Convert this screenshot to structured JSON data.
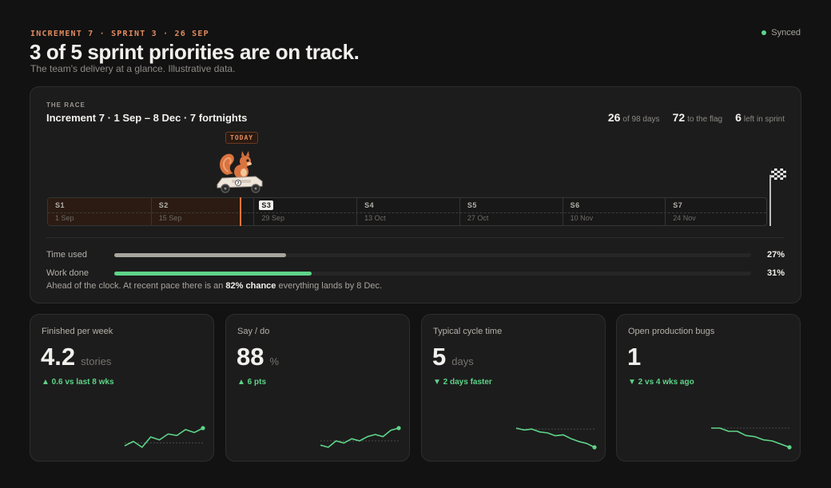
{
  "header": {
    "eyebrow": "INCREMENT 7 · SPRINT 3 · 26 SEP",
    "title": "3 of 5 sprint priorities are on track.",
    "subtitle": "The team's delivery at a glance. Illustrative data.",
    "sync_label": "Synced",
    "sync_color": "#5ed488"
  },
  "race": {
    "label": "THE RACE",
    "title": "Increment 7 · 1 Sep – 8 Dec · 7 fortnights",
    "stats": [
      {
        "num": "26",
        "label": "of 98 days"
      },
      {
        "num": "72",
        "label": "to the flag"
      },
      {
        "num": "6",
        "label": "left in sprint"
      }
    ],
    "today_label": "TODAY",
    "kart_number": "7",
    "days_elapsed_fraction": 0.27,
    "sprints": [
      {
        "name": "S1",
        "date": "1 Sep",
        "current": false
      },
      {
        "name": "S2",
        "date": "15 Sep",
        "current": false
      },
      {
        "name": "S3",
        "date": "29 Sep",
        "current": true
      },
      {
        "name": "S4",
        "date": "13 Oct",
        "current": false
      },
      {
        "name": "S5",
        "date": "27 Oct",
        "current": false
      },
      {
        "name": "S6",
        "date": "10 Nov",
        "current": false
      },
      {
        "name": "S7",
        "date": "24 Nov",
        "current": false
      }
    ],
    "bars": [
      {
        "label": "Time used",
        "pct_label": "27%",
        "fraction": 0.27,
        "color": "#a8a49e"
      },
      {
        "label": "Work done",
        "pct_label": "31%",
        "fraction": 0.31,
        "color": "#5ed488"
      }
    ],
    "note_prefix": "Ahead of the clock. At recent pace there is an ",
    "note_bold": "82% chance",
    "note_suffix": " everything lands by 8 Dec."
  },
  "cards": [
    {
      "title": "Finished per week",
      "value": "4.2",
      "unit": "stories",
      "delta": "▲ 0.6 vs last 8 wks",
      "trend": [
        3.2,
        3.5,
        3.1,
        3.8,
        3.6,
        4.0,
        3.9,
        4.3,
        4.1,
        4.4
      ],
      "baseline": 3.4
    },
    {
      "title": "Say / do",
      "value": "88",
      "unit": "%",
      "delta": "▲ 6 pts",
      "trend": [
        80,
        79,
        82,
        81,
        83,
        82,
        84,
        85,
        84,
        87,
        88
      ],
      "baseline": 82
    },
    {
      "title": "Typical cycle time",
      "value": "5",
      "unit": "days",
      "delta": "▼ 2 days faster",
      "trend": [
        7.2,
        7.0,
        7.1,
        6.8,
        6.7,
        6.4,
        6.5,
        6.1,
        5.8,
        5.6,
        5.2
      ],
      "baseline": 7.1
    },
    {
      "title": "Open production bugs",
      "value": "1",
      "unit": "",
      "delta": "▼ 2 vs 4 wks ago",
      "trend": [
        3.0,
        3.0,
        2.7,
        2.7,
        2.3,
        2.2,
        1.9,
        1.8,
        1.5,
        1.2
      ],
      "baseline": 3.0
    }
  ],
  "colors": {
    "accent": "#e08a5e",
    "positive": "#5ed488"
  }
}
